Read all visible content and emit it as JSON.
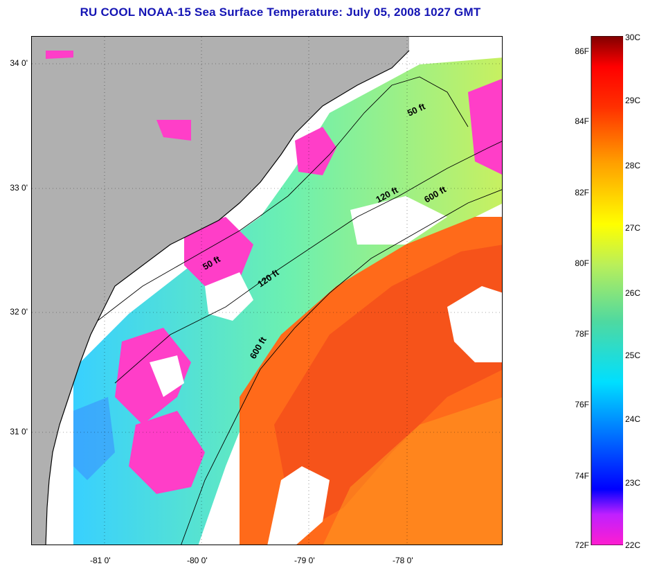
{
  "title": "RU COOL  NOAA-15  Sea Surface Temperature:  July 05, 2008 1027 GMT",
  "latitude_labels": [
    "34 0'",
    "33 0'",
    "32 0'",
    "31 0'"
  ],
  "longitude_labels": [
    "-81 0'",
    "-80 0'",
    "-79 0'",
    "-78 0'"
  ],
  "isobath_labels": [
    "50 ft",
    "120 ft",
    "600 ft",
    "50 ft",
    "120 ft",
    "600 ft"
  ],
  "colorbar": {
    "fahrenheit_labels": [
      "86F",
      "84F",
      "82F",
      "80F",
      "78F",
      "76F",
      "74F",
      "72F"
    ],
    "celsius_labels": [
      "30C",
      "29C",
      "28C",
      "27C",
      "26C",
      "25C",
      "24C",
      "23C",
      "22C"
    ],
    "colors": [
      "#ff1dcf",
      "#8a2be2",
      "#0000ff",
      "#00a0ff",
      "#00ffff",
      "#4fd9a0",
      "#b9ef5a",
      "#ffff00",
      "#ffa000",
      "#ff5000",
      "#ff0000",
      "#800000"
    ]
  },
  "colors": {
    "land": "#b0b0b0",
    "cloud": "#ffffff",
    "cool_shelf": "#7fe0d0",
    "warm_gulfstream": "#ff6a1a",
    "cold_pink": "#ff3ec8",
    "title_blue": "#1414b4"
  }
}
